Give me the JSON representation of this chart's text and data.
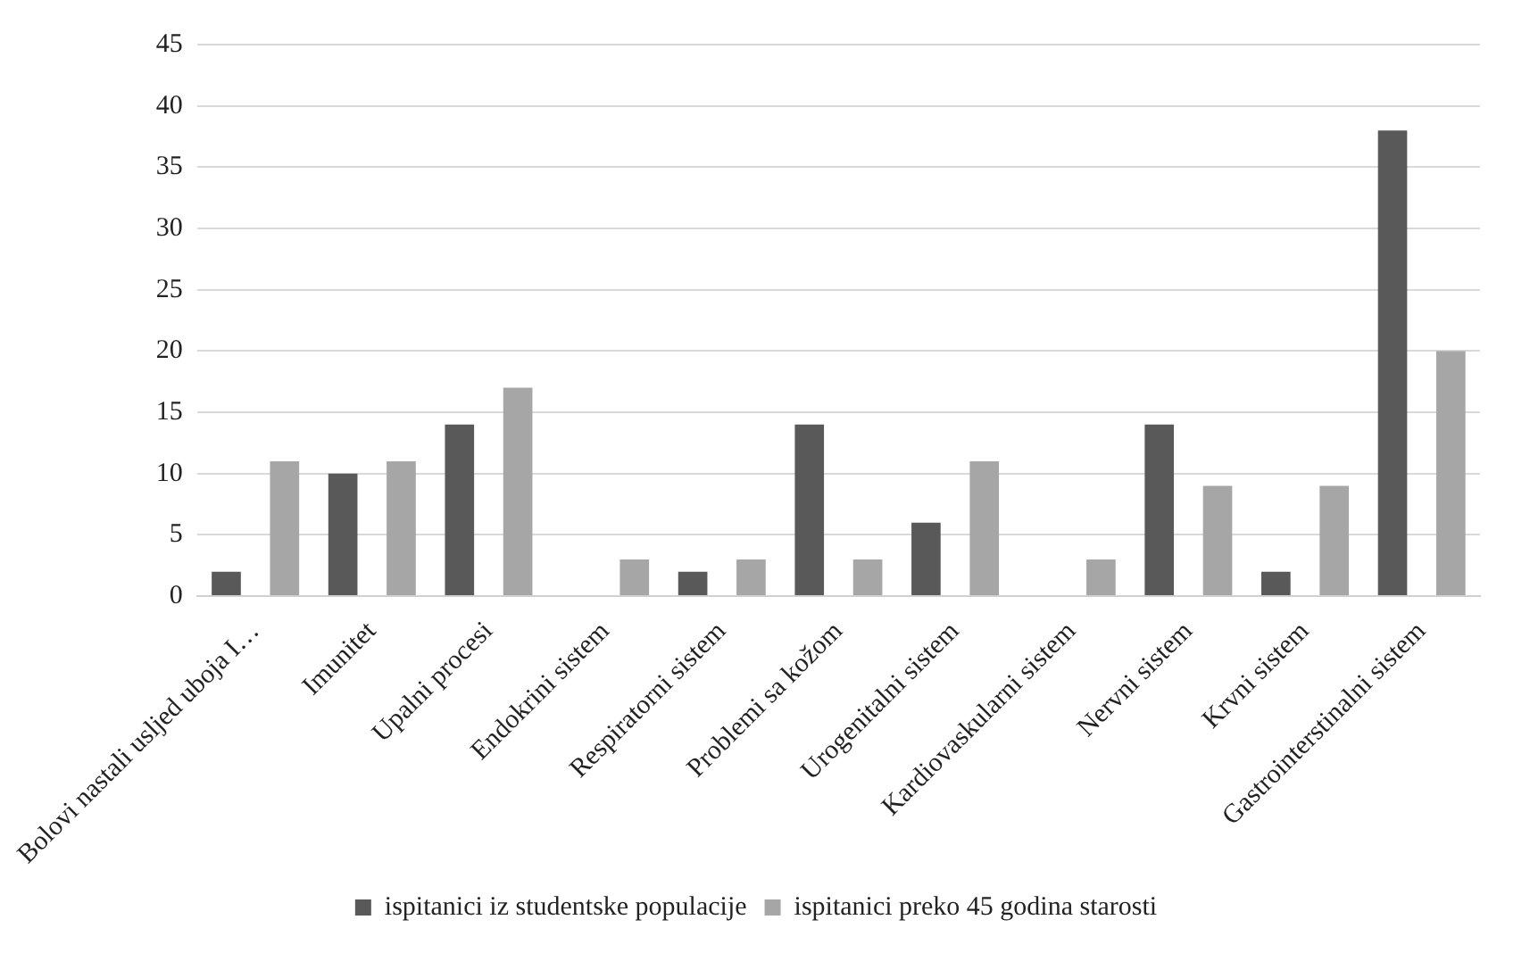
{
  "chart_data": {
    "type": "bar",
    "categories": [
      "Bolovi nastali usljed uboja I…",
      "Imunitet",
      "Upalni procesi",
      "Endokrini sistem",
      "Respiratorni sistem",
      "Problemi sa kožom",
      "Urogenitalni sistem",
      "Kardiovaskularni sistem",
      "Nervni sistem",
      "Krvni sistem",
      "Gastrointerstinalni sistem"
    ],
    "series": [
      {
        "name": "ispitanici iz studentske populacije",
        "color": "#595959",
        "values": [
          2,
          10,
          14,
          0,
          2,
          14,
          6,
          0,
          14,
          2,
          38
        ]
      },
      {
        "name": "ispitanici preko 45 godina starosti",
        "color": "#a6a6a6",
        "values": [
          11,
          11,
          17,
          3,
          3,
          3,
          11,
          3,
          9,
          9,
          20
        ]
      }
    ],
    "ylim": [
      0,
      45
    ],
    "yticks": [
      0,
      5,
      10,
      15,
      20,
      25,
      30,
      35,
      40,
      45
    ],
    "grid": "y",
    "legend": "bottom"
  }
}
